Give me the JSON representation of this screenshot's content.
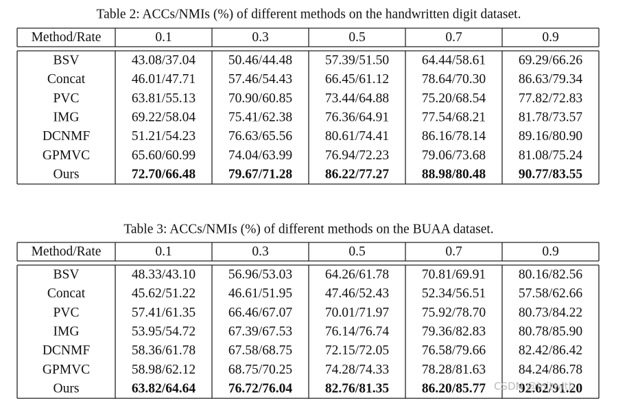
{
  "tables": [
    {
      "caption": "Table 2: ACCs/NMIs (%) of different methods on the handwritten digit dataset.",
      "header": [
        "Method/Rate",
        "0.1",
        "0.3",
        "0.5",
        "0.7",
        "0.9"
      ],
      "rows": [
        [
          "BSV",
          "43.08/37.04",
          "50.46/44.48",
          "57.39/51.50",
          "64.44/58.61",
          "69.29/66.26"
        ],
        [
          "Concat",
          "46.01/47.71",
          "57.46/54.43",
          "66.45/61.12",
          "78.64/70.30",
          "86.63/79.34"
        ],
        [
          "PVC",
          "63.81/55.13",
          "70.90/60.85",
          "73.44/64.88",
          "75.20/68.54",
          "77.82/72.83"
        ],
        [
          "IMG",
          "69.22/58.04",
          "75.41/62.38",
          "76.36/64.91",
          "77.54/68.21",
          "81.78/73.57"
        ],
        [
          "DCNMF",
          "51.21/54.23",
          "76.63/65.56",
          "80.61/74.41",
          "86.16/78.14",
          "89.16/80.90"
        ],
        [
          "GPMVC",
          "65.60/60.99",
          "74.04/63.99",
          "76.94/72.23",
          "79.06/73.68",
          "81.08/75.24"
        ],
        [
          "Ours",
          "72.70/66.48",
          "79.67/71.28",
          "86.22/77.27",
          "88.98/80.48",
          "90.77/83.55"
        ]
      ]
    },
    {
      "caption": "Table 3: ACCs/NMIs (%) of different methods on the BUAA dataset.",
      "header": [
        "Method/Rate",
        "0.1",
        "0.3",
        "0.5",
        "0.7",
        "0.9"
      ],
      "rows": [
        [
          "BSV",
          "48.33/43.10",
          "56.96/53.03",
          "64.26/61.78",
          "70.81/69.91",
          "80.16/82.56"
        ],
        [
          "Concat",
          "45.62/51.22",
          "46.61/51.95",
          "47.46/52.43",
          "52.34/56.51",
          "57.58/62.66"
        ],
        [
          "PVC",
          "57.41/61.35",
          "66.46/67.07",
          "70.01/71.97",
          "75.92/78.70",
          "80.73/84.22"
        ],
        [
          "IMG",
          "53.95/54.72",
          "67.39/67.53",
          "76.14/76.74",
          "79.36/82.83",
          "80.78/85.90"
        ],
        [
          "DCNMF",
          "58.36/61.78",
          "67.58/68.75",
          "72.15/72.05",
          "76.58/79.66",
          "82.42/86.42"
        ],
        [
          "GPMVC",
          "58.98/62.12",
          "68.75/70.25",
          "74.28/74.33",
          "78.28/81.63",
          "84.24/86.78"
        ],
        [
          "Ours",
          "63.82/64.64",
          "76.72/76.04",
          "82.76/81.35",
          "86.20/85.77",
          "92.62/91.20"
        ]
      ]
    }
  ],
  "watermark": "CSDN @initwith"
}
